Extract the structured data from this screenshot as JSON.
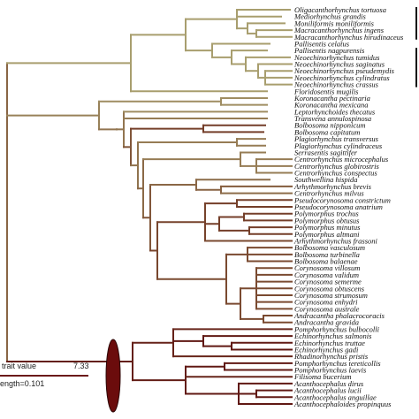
{
  "taxa": [
    "Oligacanthorhynchus tortuosa",
    "Mediorhynchus grandis",
    "Moniliformis moniliformis",
    "Macracanthorhynchus ingens",
    "Macracanthorhynchus hirudinaceus",
    "Pallisentis celatus",
    "Pallisentis nagpurensis",
    "Neoechinorhynchus tumidus",
    "Neoechinorhynchus saginatus",
    "Neoechinorhynchus pseudemydis",
    "Neoechinorhynchus cylindratus",
    "Neoechinorhynchus crassus",
    "Floridosentis mugilis",
    "Koronacantha pectinaria",
    "Koronacantha mexicana",
    "Leptorhynchoides thecatus",
    "Transvena annulospinosa",
    "Bolbosoma nipponicum",
    "Bolbosoma capitatum",
    "Plagiorhynchus transversus",
    "Plagiorhynchus cylindraceus",
    "Serrasentis sagittifer",
    "Centrorhynchus microcephalus",
    "Centrorhynchus globirostris",
    "Centrorhynchus conspectus",
    "Southwellina hispida",
    "Arhythmorhynchus brevis",
    "Centrorhynchus milvus",
    "Pseudocorynosoma constrictum",
    "Pseudocorynosoma anatrium",
    "Polymorphus trochus",
    "Polymorphus obtusus",
    "Polymorphus minutus",
    "Polymorphus altmani",
    "Arhythmorhynchus frassoni",
    "Bolbosoma vasculosum",
    "Bolbosoma turbinella",
    "Bolbosoma balaenae",
    "Corynosoma villosum",
    "Corynosoma validum",
    "Corynosoma semerme",
    "Corynosoma obtuscens",
    "Corynosoma strumosum",
    "Corynosoma enhydri",
    "Corynosoma australe",
    "Andracantha phalacrocoracis",
    "Andracantha gravida",
    "Pomphorhynchus bulbocolli",
    "Echinorhynchus salmonis",
    "Echinorhynchus truttae",
    "Echinorhynchus gadi",
    "Rhadinorhynchus pristis",
    "Pomphorhynchus tereticollis",
    "Pomphorhynchus laevis",
    "Filisoma bucerium",
    "Acanthocephalus dirus",
    "Acanthocephalus lucii",
    "Acanthocephalus anguillae",
    "Acanthocephaloides propinquus"
  ],
  "legend": {
    "label": "trait value",
    "max_value": "7.33",
    "length_label": "ength=0.101"
  },
  "colors": {
    "low": "#a89e6e",
    "mid": "#7a4a30",
    "high": "#5a0c0c",
    "ellipse": "#6b0c0c"
  }
}
